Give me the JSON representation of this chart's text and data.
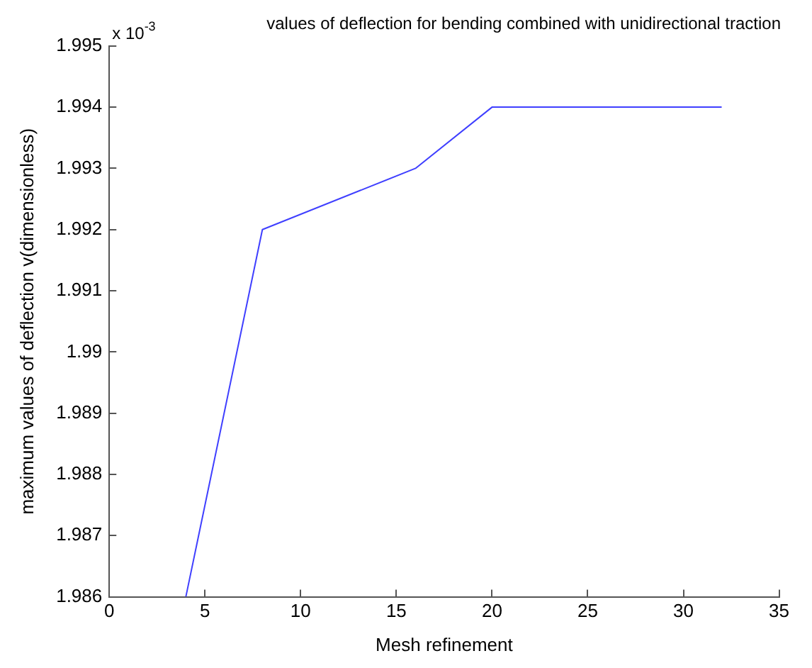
{
  "chart_data": {
    "type": "line",
    "title": "values of deflection for bending combined with unidirectional traction",
    "xlabel": "Mesh refinement",
    "ylabel": "maximum values of deflection v(dimensionless)",
    "x": [
      4,
      8,
      16,
      20,
      32
    ],
    "series": [
      {
        "color": "#3f3fff",
        "values": [
          1.986,
          1.992,
          1.993,
          1.994,
          1.994
        ]
      }
    ],
    "xlim": [
      0,
      35
    ],
    "xticks": [
      0,
      5,
      10,
      15,
      20,
      25,
      30,
      35
    ],
    "ylim": [
      1.986,
      1.995
    ],
    "yticks": [
      1.986,
      1.987,
      1.988,
      1.989,
      1.99,
      1.991,
      1.992,
      1.993,
      1.994,
      1.995
    ],
    "annotations": [
      "x 10$^{-3}$"
    ],
    "grid": false,
    "legend": false,
    "marker": "none"
  }
}
